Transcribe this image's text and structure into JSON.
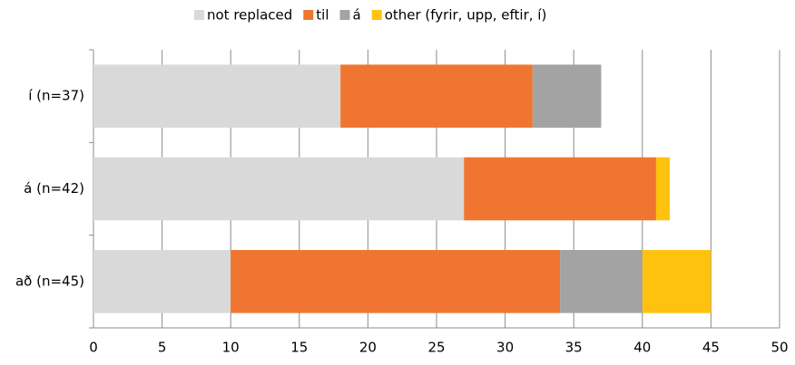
{
  "chart_data": {
    "type": "bar",
    "orientation": "horizontal",
    "stacked": true,
    "categories": [
      "í (n=37)",
      "á (n=42)",
      "að (n=45)"
    ],
    "series": [
      {
        "name": "not replaced",
        "color": "#d9d9d9",
        "values": [
          18,
          27,
          10
        ]
      },
      {
        "name": "til",
        "color": "#ef7530",
        "values": [
          14,
          14,
          24
        ]
      },
      {
        "name": "á",
        "color": "#a3a3a3",
        "values": [
          5,
          0,
          6
        ]
      },
      {
        "name": "other (fyrir, upp, eftir, í)",
        "color": "#ffc20e",
        "values": [
          0,
          1,
          5
        ]
      }
    ],
    "xlim": [
      0,
      50
    ],
    "xticks": [
      0,
      5,
      10,
      15,
      20,
      25,
      30,
      35,
      40,
      45,
      50
    ],
    "grid": true,
    "legend": "top"
  }
}
